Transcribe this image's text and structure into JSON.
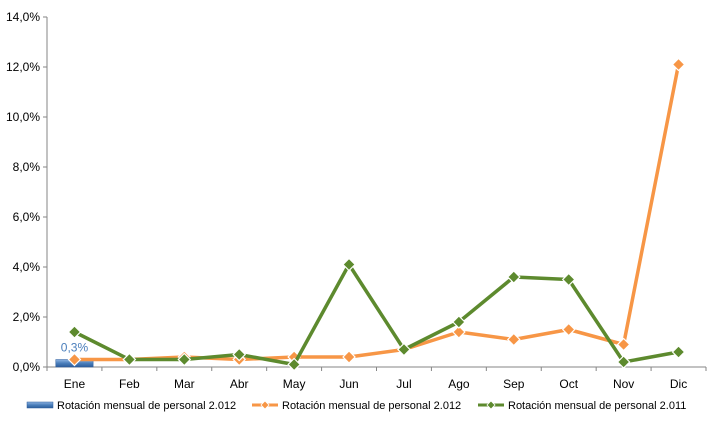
{
  "chart_data": {
    "type": "line",
    "categories": [
      "Ene",
      "Feb",
      "Mar",
      "Abr",
      "May",
      "Jun",
      "Jul",
      "Ago",
      "Sep",
      "Oct",
      "Nov",
      "Dic"
    ],
    "y_ticks": [
      "0,0%",
      "2,0%",
      "4,0%",
      "6,0%",
      "8,0%",
      "10,0%",
      "12,0%",
      "14,0%"
    ],
    "ylim": [
      0,
      14
    ],
    "grid": false,
    "legend_position": "bottom",
    "series": [
      {
        "name": "Rotación mensual  de personal 2.012",
        "kind": "bar",
        "color": "#4a7ebb",
        "values": [
          0.3,
          null,
          null,
          null,
          null,
          null,
          null,
          null,
          null,
          null,
          null,
          null
        ],
        "data_labels": [
          "0,3%"
        ]
      },
      {
        "name": "Rotación mensual  de personal 2.012",
        "kind": "line",
        "color": "#f79646",
        "values": [
          0.3,
          0.3,
          0.4,
          0.3,
          0.4,
          0.4,
          0.7,
          1.4,
          1.1,
          1.5,
          0.9,
          12.1
        ]
      },
      {
        "name": "Rotación mensual  de personal 2.011",
        "kind": "line",
        "color": "#5d8a2e",
        "values": [
          1.4,
          0.3,
          0.3,
          0.5,
          0.1,
          4.1,
          0.7,
          1.8,
          3.6,
          3.5,
          0.2,
          0.6
        ]
      }
    ]
  }
}
